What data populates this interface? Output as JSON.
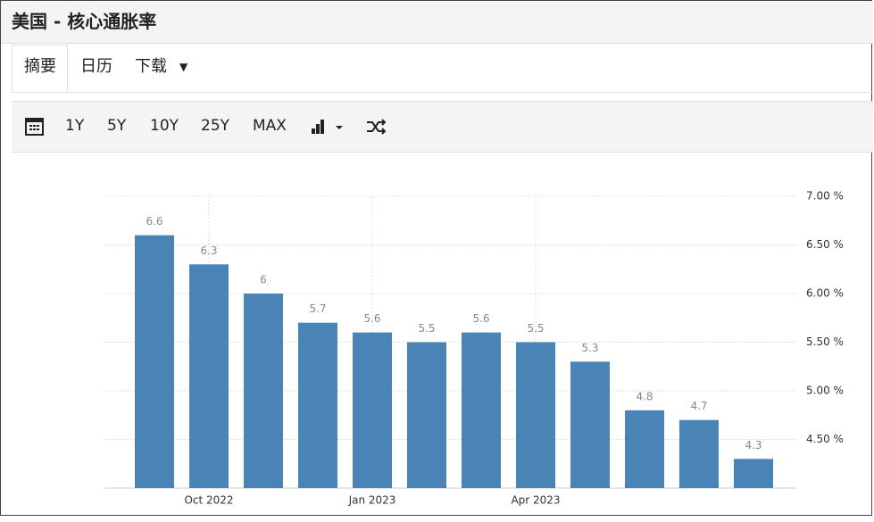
{
  "header": {
    "title": "美国 - 核心通胀率"
  },
  "tabs": [
    "摘要",
    "日历",
    "下载"
  ],
  "toolbar": [
    "1Y",
    "5Y",
    "10Y",
    "25Y",
    "MAX"
  ],
  "chart_data": {
    "type": "bar",
    "categories": [
      null,
      "Oct 2022",
      null,
      null,
      "Jan 2023",
      null,
      null,
      "Apr 2023",
      null,
      null,
      null,
      null
    ],
    "values": [
      6.6,
      6.3,
      6,
      5.7,
      5.6,
      5.5,
      5.6,
      5.5,
      5.3,
      4.8,
      4.7,
      4.3
    ],
    "color": "#4a83b6",
    "ylim": [
      4,
      7
    ],
    "yticks": [
      {
        "value": 4.5,
        "label": "4.50 %"
      },
      {
        "value": 5,
        "label": "5.00 %"
      },
      {
        "value": 5.5,
        "label": "5.50 %"
      },
      {
        "value": 6,
        "label": "6.00 %"
      },
      {
        "value": 6.5,
        "label": "6.50 %"
      },
      {
        "value": 7,
        "label": "7.00 %"
      }
    ],
    "grid": true
  }
}
